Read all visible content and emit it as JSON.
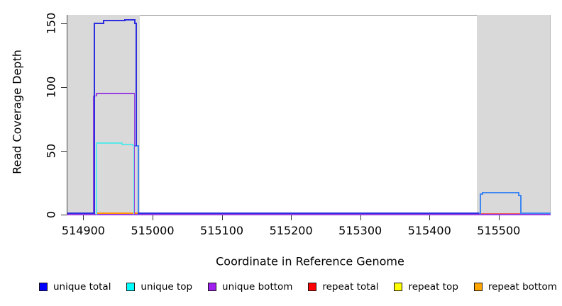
{
  "chart_data": {
    "type": "line",
    "step": true,
    "title": "",
    "xlabel": "Coordinate in Reference Genome",
    "ylabel": "Read Coverage Depth",
    "xlim": [
      514877,
      515574
    ],
    "ylim": [
      0,
      157
    ],
    "grid": false,
    "legend_position": "bottom",
    "band_color": "#d9d9d9",
    "xticks": [
      {
        "v": 514900,
        "label": "514900"
      },
      {
        "v": 515000,
        "label": "515000"
      },
      {
        "v": 515100,
        "label": "515100"
      },
      {
        "v": 515200,
        "label": "515200"
      },
      {
        "v": 515300,
        "label": "515300"
      },
      {
        "v": 515400,
        "label": "515400"
      },
      {
        "v": 515500,
        "label": "515500"
      }
    ],
    "yticks": [
      {
        "v": 0,
        "label": "0"
      },
      {
        "v": 50,
        "label": "50"
      },
      {
        "v": 100,
        "label": "100"
      },
      {
        "v": 150,
        "label": "150"
      }
    ],
    "bands": [
      {
        "from": 514877,
        "to": 514982
      },
      {
        "from": 515468,
        "to": 515574
      }
    ],
    "legend": [
      {
        "label": "unique total",
        "color": "#0000ff"
      },
      {
        "label": "unique top",
        "color": "#00ffff"
      },
      {
        "label": "unique bottom",
        "color": "#a020f0"
      },
      {
        "label": "repeat total",
        "color": "#ff0000"
      },
      {
        "label": "repeat top",
        "color": "#ffff00"
      },
      {
        "label": "repeat bottom",
        "color": "#ffa500"
      }
    ],
    "render_series": [
      {
        "name": "unique-bottom-baseline",
        "color": "#9a40e0",
        "width": 2,
        "points": [
          [
            514877,
            0
          ],
          [
            515574,
            0
          ]
        ]
      },
      {
        "name": "repeat-total-right",
        "color": "#ee5555",
        "width": 1.6,
        "points": [
          [
            515469,
            0.5
          ],
          [
            515571,
            0.5
          ]
        ]
      },
      {
        "name": "repeat-bottom-left",
        "color": "#ff9500",
        "width": 2.2,
        "points": [
          [
            514919,
            0.7
          ],
          [
            514979,
            0.7
          ]
        ]
      },
      {
        "name": "unique-bottom-peak",
        "color": "#9a40e0",
        "width": 1.6,
        "points": [
          [
            514915,
            0
          ],
          [
            514915,
            93
          ],
          [
            514919,
            93
          ],
          [
            514919,
            95
          ],
          [
            514974,
            95
          ],
          [
            514974,
            0
          ]
        ]
      },
      {
        "name": "unique-top-peak",
        "color": "#5ae8e8",
        "width": 1.6,
        "points": [
          [
            514919,
            0
          ],
          [
            514919,
            56
          ],
          [
            514956,
            56
          ],
          [
            514956,
            55
          ],
          [
            514971,
            55
          ],
          [
            514971,
            54
          ],
          [
            514973,
            54
          ],
          [
            514973,
            0
          ]
        ]
      },
      {
        "name": "total-edge-shelf",
        "color": "#3e86f2",
        "width": 2,
        "points": [
          [
            514975,
            54
          ],
          [
            514980,
            54
          ],
          [
            514980,
            0
          ]
        ]
      },
      {
        "name": "right-peak",
        "color": "#3e86f2",
        "width": 2,
        "points": [
          [
            515470,
            0.6
          ],
          [
            515474,
            0.6
          ],
          [
            515474,
            16
          ],
          [
            515477,
            16
          ],
          [
            515477,
            17
          ],
          [
            515529,
            17
          ],
          [
            515529,
            15
          ],
          [
            515532,
            15
          ],
          [
            515532,
            0.6
          ],
          [
            515574,
            0.6
          ]
        ]
      },
      {
        "name": "unique-total-box",
        "color": "#2e2ee0",
        "width": 2,
        "points": [
          [
            514877,
            0.6
          ],
          [
            514916,
            0.6
          ],
          [
            514916,
            150
          ],
          [
            514929,
            150
          ],
          [
            514929,
            152
          ],
          [
            514960,
            152
          ],
          [
            514960,
            153
          ],
          [
            514974,
            153
          ],
          [
            514974,
            150
          ],
          [
            514976,
            150
          ],
          [
            514976,
            54
          ]
        ]
      },
      {
        "name": "unique-total-mid-baseline",
        "color": "#2e2ee0",
        "width": 2,
        "points": [
          [
            514980,
            0.6
          ],
          [
            515470,
            0.6
          ]
        ]
      }
    ]
  }
}
